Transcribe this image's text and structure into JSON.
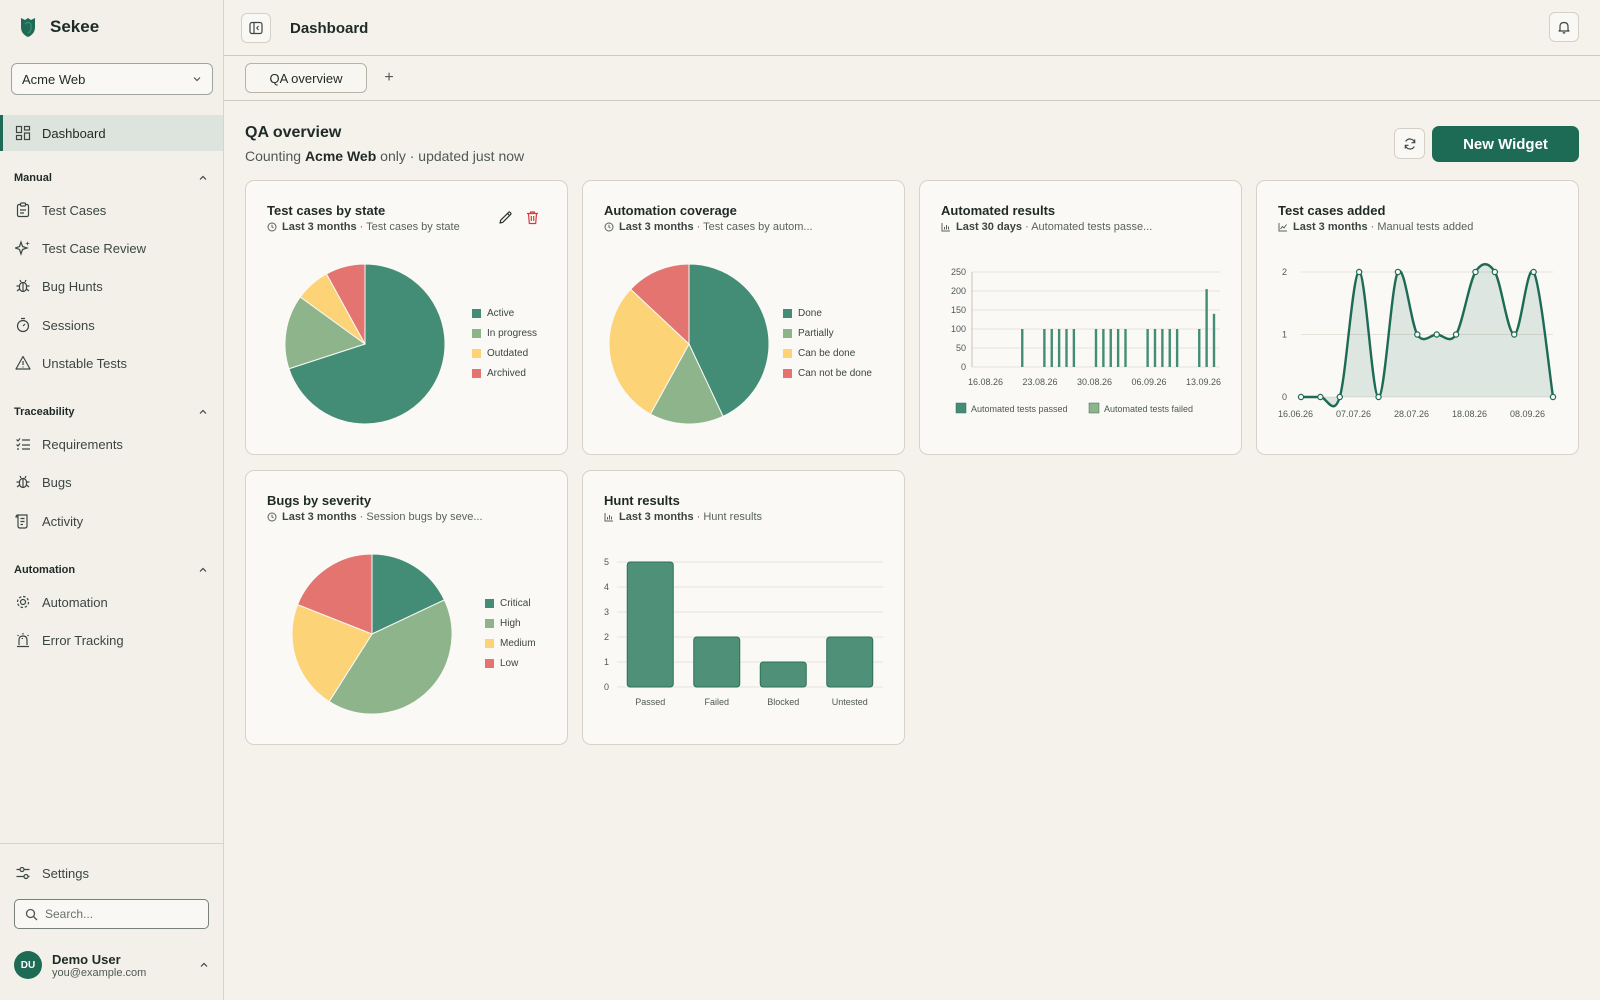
{
  "app": {
    "name": "Sekee"
  },
  "sidebar": {
    "project": "Acme Web",
    "dashboard": "Dashboard",
    "sections": [
      {
        "title": "Manual",
        "items": [
          "Test Cases",
          "Test Case Review",
          "Bug Hunts",
          "Sessions",
          "Unstable Tests"
        ]
      },
      {
        "title": "Traceability",
        "items": [
          "Requirements",
          "Bugs",
          "Activity"
        ]
      },
      {
        "title": "Automation",
        "items": [
          "Automation",
          "Error Tracking"
        ]
      }
    ],
    "settings": "Settings",
    "search_placeholder": "Search...",
    "user": {
      "initials": "DU",
      "name": "Demo User",
      "email": "you@example.com"
    }
  },
  "header": {
    "title": "Dashboard"
  },
  "tabs": {
    "active": "QA overview",
    "add": "+"
  },
  "dashboard": {
    "title": "QA overview",
    "sub_prefix": "Counting",
    "sub_project": "Acme Web",
    "sub_suffix": "only · updated just now",
    "new_widget": "New Widget"
  },
  "colors": {
    "green": "#438d76",
    "light_green": "#8db48b",
    "yellow": "#fcd377",
    "red": "#e37470",
    "accent": "#1e6b55"
  },
  "widgets": [
    {
      "title": "Test cases by state",
      "period": "Last 3 months",
      "desc": "· Test cases by state",
      "meta_icon": "clock-icon",
      "chart_data": {
        "type": "pie",
        "labels": [
          "Active",
          "In progress",
          "Outdated",
          "Archived"
        ],
        "values": [
          70,
          15,
          7,
          8
        ]
      }
    },
    {
      "title": "Automation coverage",
      "period": "Last 3 months",
      "desc": "· Test cases by autom...",
      "meta_icon": "clock-icon",
      "chart_data": {
        "type": "pie",
        "labels": [
          "Done",
          "Partially",
          "Can be done",
          "Can not be done"
        ],
        "values": [
          43,
          15,
          29,
          13
        ]
      }
    },
    {
      "title": "Automated results",
      "period": "Last 30 days",
      "desc": "· Automated tests passe...",
      "meta_icon": "bar-chart-icon",
      "chart_data": {
        "type": "bar",
        "x_ticks": [
          "16.08.26",
          "23.08.26",
          "30.08.26",
          "06.09.26",
          "13.09.26"
        ],
        "y_ticks": [
          0,
          50,
          100,
          150,
          200,
          250
        ],
        "ylim": [
          0,
          250
        ],
        "series": [
          {
            "name": "Automated tests passed",
            "values": [
              0,
              0,
              0,
              0,
              0,
              0,
              100,
              0,
              0,
              100,
              100,
              100,
              100,
              100,
              0,
              0,
              100,
              100,
              100,
              100,
              100,
              0,
              0,
              100,
              100,
              100,
              100,
              100,
              0,
              0,
              100,
              205,
              140
            ]
          },
          {
            "name": "Automated tests failed",
            "values": [
              0,
              0,
              0,
              0,
              0,
              0,
              0,
              0,
              0,
              0,
              0,
              0,
              0,
              0,
              0,
              0,
              0,
              0,
              0,
              0,
              0,
              0,
              0,
              0,
              0,
              0,
              0,
              0,
              0,
              0,
              0,
              0,
              0
            ]
          }
        ]
      }
    },
    {
      "title": "Test cases added",
      "period": "Last 3 months",
      "desc": "· Manual tests added",
      "meta_icon": "line-chart-icon",
      "chart_data": {
        "type": "area",
        "x_ticks": [
          "16.06.26",
          "07.07.26",
          "28.07.26",
          "18.08.26",
          "08.09.26"
        ],
        "y_ticks": [
          0,
          1,
          2
        ],
        "ylim": [
          0,
          2
        ],
        "values": [
          0,
          0,
          0,
          2,
          0,
          2,
          1,
          1,
          1,
          2,
          2,
          1,
          2,
          0
        ]
      }
    },
    {
      "title": "Bugs by severity",
      "period": "Last 3 months",
      "desc": "· Session bugs by seve...",
      "meta_icon": "clock-icon",
      "chart_data": {
        "type": "pie",
        "labels": [
          "Critical",
          "High",
          "Medium",
          "Low"
        ],
        "values": [
          18,
          41,
          22,
          19
        ]
      }
    },
    {
      "title": "Hunt results",
      "period": "Last 3 months",
      "desc": "· Hunt results",
      "meta_icon": "bar-chart-icon",
      "chart_data": {
        "type": "bar",
        "categories": [
          "Passed",
          "Failed",
          "Blocked",
          "Untested"
        ],
        "values": [
          5,
          2,
          1,
          2
        ],
        "y_ticks": [
          0,
          1,
          2,
          3,
          4,
          5
        ],
        "ylim": [
          0,
          5
        ]
      }
    }
  ]
}
